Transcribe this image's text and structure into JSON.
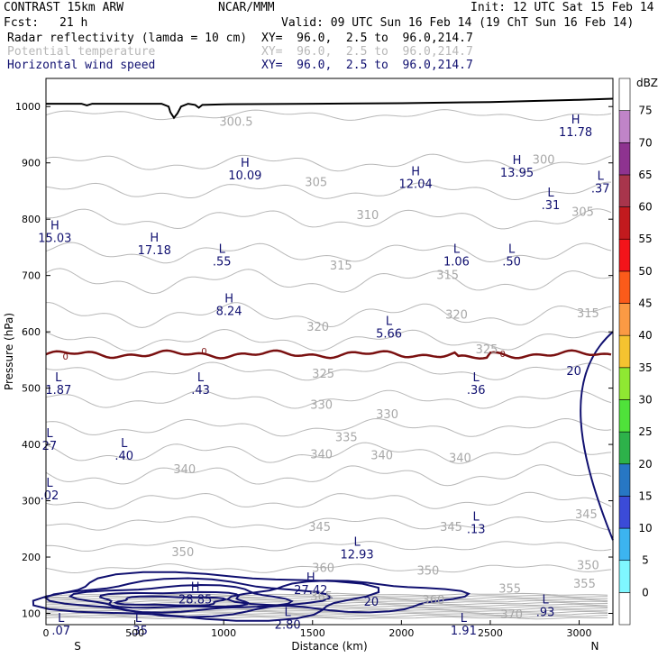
{
  "header": {
    "model": "CONTRAST 15km ARW",
    "org": "NCAR/MMM",
    "init": "Init: 12 UTC Sat 15 Feb 14",
    "fcst_label": "Fcst:",
    "fcst_value": "21 h",
    "valid": "Valid: 09 UTC Sun 16 Feb 14 (19 ChT Sun 16 Feb 14)",
    "fields": [
      {
        "name": "Radar reflectivity (lamda = 10 cm)",
        "xy": "XY=  96.0,  2.5 to  96.0,214.7",
        "color": "#000000"
      },
      {
        "name": "Potential temperature",
        "xy": "XY=  96.0,  2.5 to  96.0,214.7",
        "color": "#b8b8b8"
      },
      {
        "name": "Horizontal wind speed",
        "xy": "XY=  96.0,  2.5 to  96.0,214.7",
        "color": "#101070"
      }
    ]
  },
  "chart_data": {
    "type": "cross-section contour",
    "xlabel": "Distance (km)",
    "ylabel": "Pressure (hPa)",
    "xlim": [
      0,
      3190
    ],
    "ylim": [
      1050,
      80
    ],
    "x_ticks": [
      0,
      500,
      1000,
      1500,
      2000,
      2500,
      3000
    ],
    "y_ticks": [
      100,
      200,
      300,
      400,
      500,
      600,
      700,
      800,
      900,
      1000
    ],
    "left_end_label": "S",
    "right_end_label": "N",
    "colorbar": {
      "unit": "dBZ",
      "levels": [
        0,
        5,
        10,
        15,
        20,
        25,
        30,
        35,
        40,
        45,
        50,
        55,
        60,
        65,
        70,
        75
      ],
      "colors": [
        "#ffffff",
        "#7ff7ff",
        "#3cb4f0",
        "#3b4bd8",
        "#2777c4",
        "#2db24a",
        "#4fe23a",
        "#8fe832",
        "#f5c330",
        "#fb9a44",
        "#fb5b1a",
        "#f3141a",
        "#c21a1e",
        "#a8354c",
        "#8e3390",
        "#c084c8",
        "#ffffff"
      ]
    },
    "theta_contours": [
      {
        "label": "300",
        "x": 2800,
        "p": 905
      },
      {
        "label": "300.5",
        "x": 1070,
        "p": 972
      },
      {
        "label": "305",
        "x": 1520,
        "p": 865
      },
      {
        "label": "305",
        "x": 3020,
        "p": 812
      },
      {
        "label": "310",
        "x": 1810,
        "p": 807
      },
      {
        "label": "315",
        "x": 1660,
        "p": 717
      },
      {
        "label": "315",
        "x": 2260,
        "p": 700
      },
      {
        "label": "315",
        "x": 3050,
        "p": 632
      },
      {
        "label": "320",
        "x": 1530,
        "p": 608
      },
      {
        "label": "320",
        "x": 2310,
        "p": 630
      },
      {
        "label": "325",
        "x": 1560,
        "p": 525
      },
      {
        "label": "325",
        "x": 2480,
        "p": 568
      },
      {
        "label": "330",
        "x": 1550,
        "p": 470
      },
      {
        "label": "330",
        "x": 1920,
        "p": 453
      },
      {
        "label": "335",
        "x": 1690,
        "p": 412
      },
      {
        "label": "340",
        "x": 780,
        "p": 355
      },
      {
        "label": "340",
        "x": 1550,
        "p": 382
      },
      {
        "label": "340",
        "x": 1890,
        "p": 380
      },
      {
        "label": "340",
        "x": 2330,
        "p": 375
      },
      {
        "label": "345",
        "x": 1540,
        "p": 253
      },
      {
        "label": "345",
        "x": 2280,
        "p": 253
      },
      {
        "label": "345",
        "x": 3040,
        "p": 275
      },
      {
        "label": "350",
        "x": 770,
        "p": 208
      },
      {
        "label": "350",
        "x": 2150,
        "p": 175
      },
      {
        "label": "350",
        "x": 3050,
        "p": 185
      },
      {
        "label": "355",
        "x": 2610,
        "p": 143
      },
      {
        "label": "355",
        "x": 3030,
        "p": 152
      },
      {
        "label": "360",
        "x": 2180,
        "p": 123
      },
      {
        "label": "360",
        "x": 1560,
        "p": 180
      },
      {
        "label": "365",
        "x": 1550,
        "p": 130
      },
      {
        "label": "370",
        "x": 2620,
        "p": 98
      }
    ],
    "wind_contours": [
      {
        "label": "20",
        "x": 1830,
        "p": 120
      },
      {
        "label": "20",
        "x": 2970,
        "p": 530
      },
      {
        "label": "0",
        "x": 110,
        "p": 557
      },
      {
        "label": "0",
        "x": 890,
        "p": 567
      },
      {
        "label": "0",
        "x": 2570,
        "p": 562
      }
    ],
    "wind_extrema": [
      {
        "type": "L",
        "value": ".07",
        "x": 85,
        "p": 85
      },
      {
        "type": "L",
        "value": ".35",
        "x": 520,
        "p": 85
      },
      {
        "type": "L",
        "value": "2.80",
        "x": 1360,
        "p": 95
      },
      {
        "type": "L",
        "value": "1.91",
        "x": 2350,
        "p": 85
      },
      {
        "type": "L",
        "value": ".93",
        "x": 2810,
        "p": 118
      },
      {
        "type": "H",
        "value": "28.85",
        "x": 840,
        "p": 140
      },
      {
        "type": "H",
        "value": "27.42",
        "x": 1490,
        "p": 157
      },
      {
        "type": "L",
        "value": "12.93",
        "x": 1750,
        "p": 220
      },
      {
        "type": "L",
        "value": ".13",
        "x": 2420,
        "p": 265
      },
      {
        "type": "L",
        "value": ".02",
        "x": 20,
        "p": 325
      },
      {
        "type": "L",
        "value": ".40",
        "x": 440,
        "p": 395
      },
      {
        "type": "L",
        "value": "27",
        "x": 20,
        "p": 413
      },
      {
        "type": "L",
        "value": "1.87",
        "x": 70,
        "p": 512
      },
      {
        "type": "L",
        "value": ".43",
        "x": 870,
        "p": 512
      },
      {
        "type": "L",
        "value": ".36",
        "x": 2420,
        "p": 512
      },
      {
        "type": "L",
        "value": "5.66",
        "x": 1930,
        "p": 612
      },
      {
        "type": "H",
        "value": "8.24",
        "x": 1030,
        "p": 652
      },
      {
        "type": "L",
        "value": ".55",
        "x": 990,
        "p": 740
      },
      {
        "type": "L",
        "value": "1.06",
        "x": 2310,
        "p": 740
      },
      {
        "type": "L",
        "value": ".50",
        "x": 2620,
        "p": 740
      },
      {
        "type": "H",
        "value": "17.18",
        "x": 610,
        "p": 760
      },
      {
        "type": "H",
        "value": "15.03",
        "x": 50,
        "p": 782
      },
      {
        "type": "L",
        "value": ".31",
        "x": 2840,
        "p": 840
      },
      {
        "type": "L",
        "value": ".37",
        "x": 3120,
        "p": 870
      },
      {
        "type": "H",
        "value": "12.04",
        "x": 2080,
        "p": 878
      },
      {
        "type": "H",
        "value": "10.09",
        "x": 1120,
        "p": 893
      },
      {
        "type": "H",
        "value": "13.95",
        "x": 2650,
        "p": 898
      },
      {
        "type": "H",
        "value": "11.78",
        "x": 2980,
        "p": 970
      }
    ],
    "reflectivity_column": {
      "x": 720,
      "p_top": 595,
      "p_bottom": 980,
      "peak_dbz": 20
    },
    "terrain": {
      "x": [
        0,
        200,
        230,
        260,
        650,
        690,
        700,
        720,
        740,
        760,
        800,
        840,
        860,
        880,
        1000,
        1500,
        2000,
        2500,
        3000,
        3190
      ],
      "p": [
        1005,
        1005,
        1002,
        1005,
        1005,
        1000,
        990,
        980,
        988,
        1000,
        1005,
        1003,
        998,
        1003,
        1004,
        1005,
        1006,
        1008,
        1012,
        1014
      ]
    }
  }
}
